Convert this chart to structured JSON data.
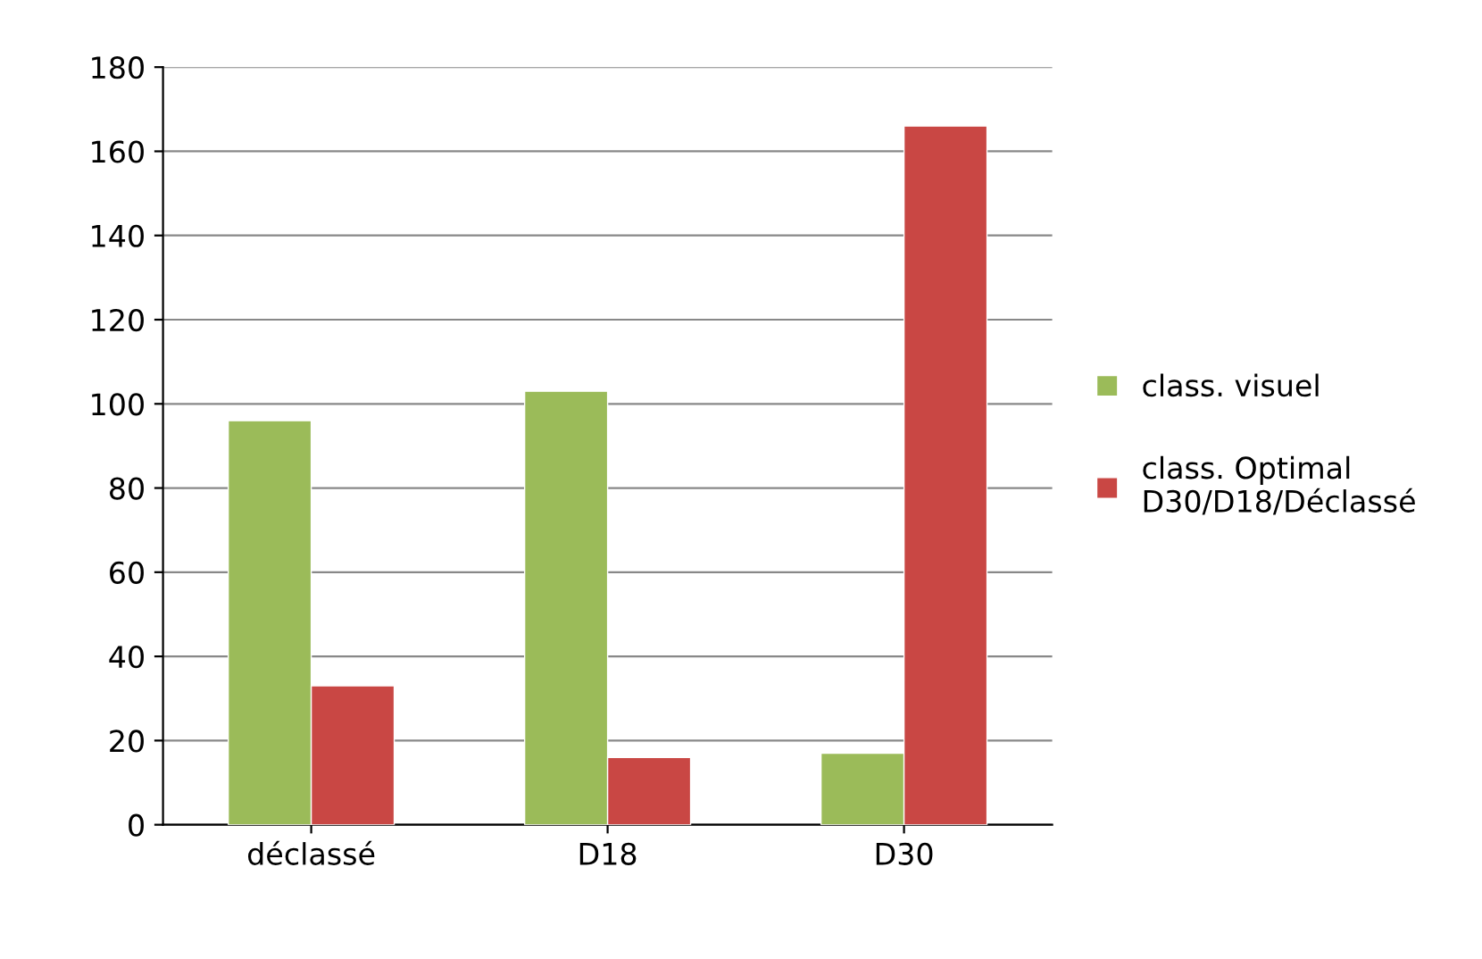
{
  "chart_data": {
    "type": "bar",
    "categories": [
      "déclassé",
      "D18",
      "D30"
    ],
    "series": [
      {
        "name": "class. visuel",
        "color": "#9bbb59",
        "values": [
          96,
          103,
          17
        ]
      },
      {
        "name": "class. Optimal\nD30/D18/Déclassé",
        "color": "#c94744",
        "values": [
          33,
          16,
          166
        ]
      }
    ],
    "ylim": [
      0,
      180
    ],
    "yticks": [
      0,
      20,
      40,
      60,
      80,
      100,
      120,
      140,
      160,
      180
    ],
    "grid": "y",
    "legend": "right"
  }
}
